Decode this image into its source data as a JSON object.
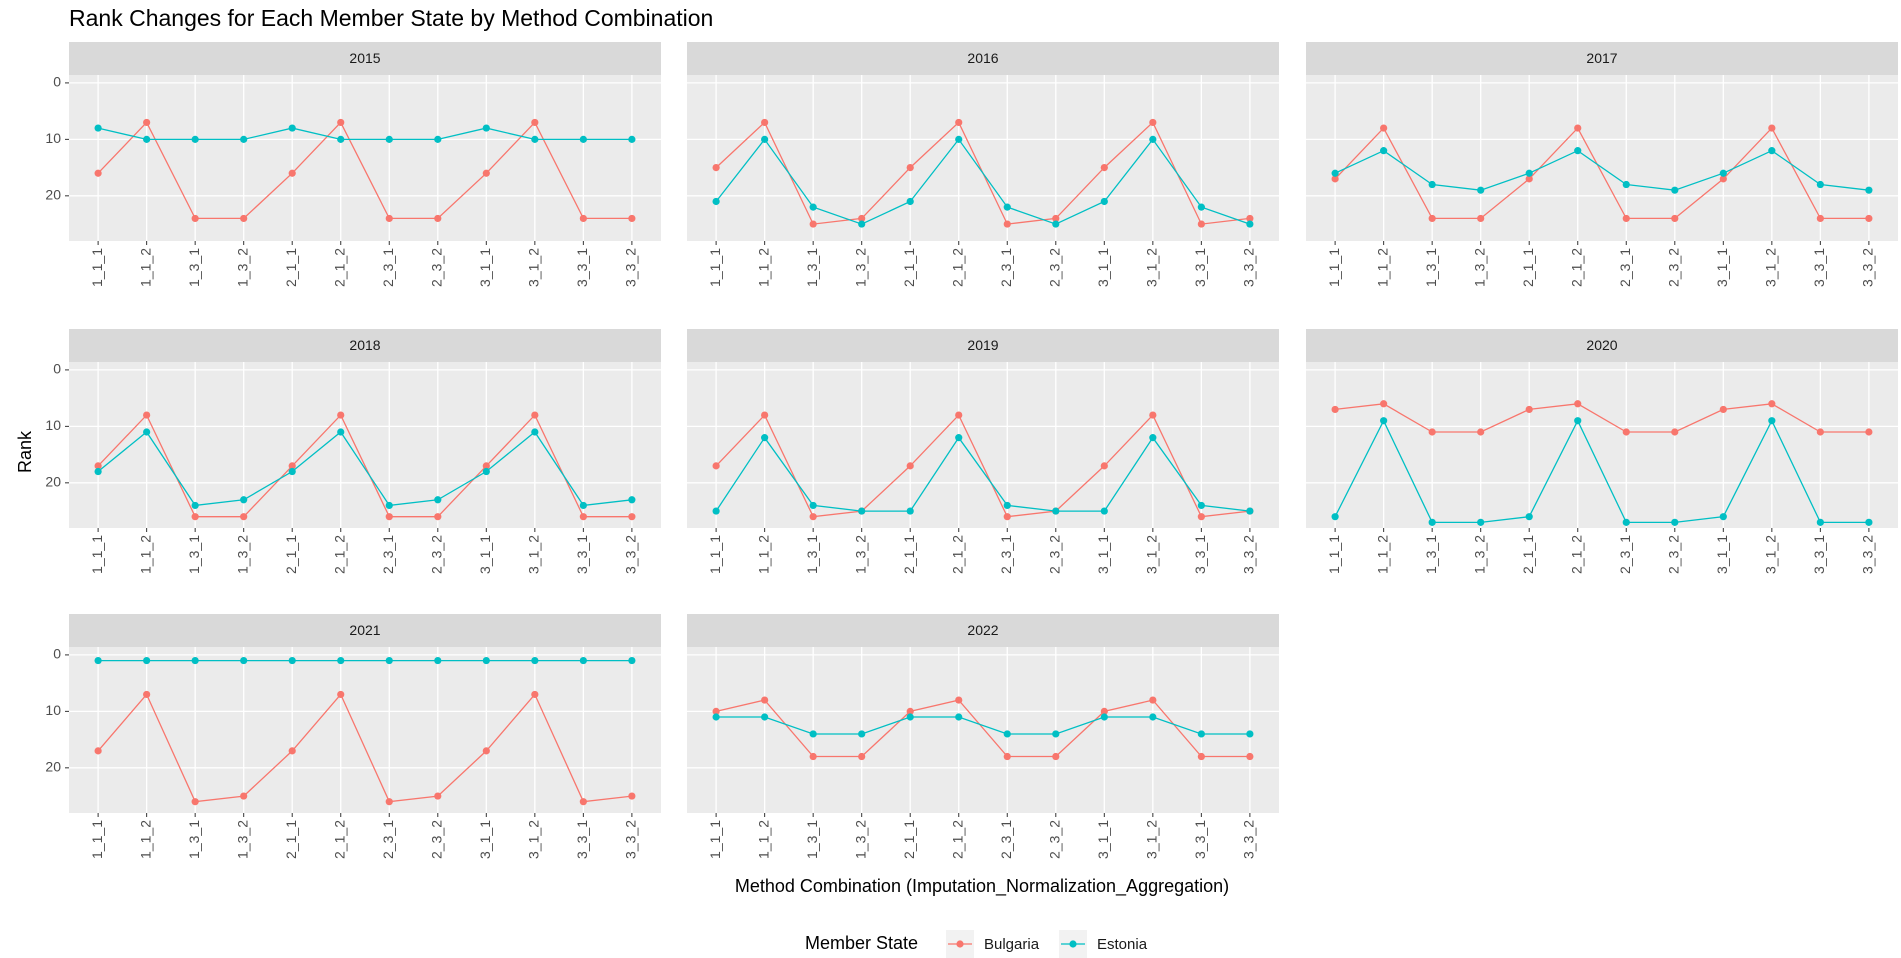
{
  "title": "Rank Changes for Each Member State by Method Combination",
  "x_label": "Method Combination (Imputation_Normalization_Aggregation)",
  "y_label": "Rank",
  "legend_title": "Member State",
  "chart_data": [
    {
      "type": "line",
      "title": "2015",
      "categories": [
        "1_1_1",
        "1_1_2",
        "1_3_1",
        "1_3_2",
        "2_1_1",
        "2_1_2",
        "2_3_1",
        "2_3_2",
        "3_1_1",
        "3_1_2",
        "3_3_1",
        "3_3_2"
      ],
      "ylim": [
        -1.4,
        28
      ],
      "y_reversed": true,
      "yticks": [
        0,
        10,
        20
      ],
      "grid": true,
      "series": [
        {
          "name": "Bulgaria",
          "color": "#F8766D",
          "values": [
            16,
            7,
            24,
            24,
            16,
            7,
            24,
            24,
            16,
            7,
            24,
            24
          ]
        },
        {
          "name": "Estonia",
          "color": "#00BFC4",
          "values": [
            8,
            10,
            10,
            10,
            8,
            10,
            10,
            10,
            8,
            10,
            10,
            10
          ]
        }
      ]
    },
    {
      "type": "line",
      "title": "2016",
      "categories": [
        "1_1_1",
        "1_1_2",
        "1_3_1",
        "1_3_2",
        "2_1_1",
        "2_1_2",
        "2_3_1",
        "2_3_2",
        "3_1_1",
        "3_1_2",
        "3_3_1",
        "3_3_2"
      ],
      "ylim": [
        -1.4,
        28
      ],
      "y_reversed": true,
      "yticks": [
        0,
        10,
        20
      ],
      "grid": true,
      "series": [
        {
          "name": "Bulgaria",
          "color": "#F8766D",
          "values": [
            15,
            7,
            25,
            24,
            15,
            7,
            25,
            24,
            15,
            7,
            25,
            24
          ]
        },
        {
          "name": "Estonia",
          "color": "#00BFC4",
          "values": [
            21,
            10,
            22,
            25,
            21,
            10,
            22,
            25,
            21,
            10,
            22,
            25
          ]
        }
      ]
    },
    {
      "type": "line",
      "title": "2017",
      "categories": [
        "1_1_1",
        "1_1_2",
        "1_3_1",
        "1_3_2",
        "2_1_1",
        "2_1_2",
        "2_3_1",
        "2_3_2",
        "3_1_1",
        "3_1_2",
        "3_3_1",
        "3_3_2"
      ],
      "ylim": [
        -1.4,
        28
      ],
      "y_reversed": true,
      "yticks": [
        0,
        10,
        20
      ],
      "grid": true,
      "series": [
        {
          "name": "Bulgaria",
          "color": "#F8766D",
          "values": [
            17,
            8,
            24,
            24,
            17,
            8,
            24,
            24,
            17,
            8,
            24,
            24
          ]
        },
        {
          "name": "Estonia",
          "color": "#00BFC4",
          "values": [
            16,
            12,
            18,
            19,
            16,
            12,
            18,
            19,
            16,
            12,
            18,
            19
          ]
        }
      ]
    },
    {
      "type": "line",
      "title": "2018",
      "categories": [
        "1_1_1",
        "1_1_2",
        "1_3_1",
        "1_3_2",
        "2_1_1",
        "2_1_2",
        "2_3_1",
        "2_3_2",
        "3_1_1",
        "3_1_2",
        "3_3_1",
        "3_3_2"
      ],
      "ylim": [
        -1.4,
        28
      ],
      "y_reversed": true,
      "yticks": [
        0,
        10,
        20
      ],
      "grid": true,
      "series": [
        {
          "name": "Bulgaria",
          "color": "#F8766D",
          "values": [
            17,
            8,
            26,
            26,
            17,
            8,
            26,
            26,
            17,
            8,
            26,
            26
          ]
        },
        {
          "name": "Estonia",
          "color": "#00BFC4",
          "values": [
            18,
            11,
            24,
            23,
            18,
            11,
            24,
            23,
            18,
            11,
            24,
            23
          ]
        }
      ]
    },
    {
      "type": "line",
      "title": "2019",
      "categories": [
        "1_1_1",
        "1_1_2",
        "1_3_1",
        "1_3_2",
        "2_1_1",
        "2_1_2",
        "2_3_1",
        "2_3_2",
        "3_1_1",
        "3_1_2",
        "3_3_1",
        "3_3_2"
      ],
      "ylim": [
        -1.4,
        28
      ],
      "y_reversed": true,
      "yticks": [
        0,
        10,
        20
      ],
      "grid": true,
      "series": [
        {
          "name": "Bulgaria",
          "color": "#F8766D",
          "values": [
            17,
            8,
            26,
            25,
            17,
            8,
            26,
            25,
            17,
            8,
            26,
            25
          ]
        },
        {
          "name": "Estonia",
          "color": "#00BFC4",
          "values": [
            25,
            12,
            24,
            25,
            25,
            12,
            24,
            25,
            25,
            12,
            24,
            25
          ]
        }
      ]
    },
    {
      "type": "line",
      "title": "2020",
      "categories": [
        "1_1_1",
        "1_1_2",
        "1_3_1",
        "1_3_2",
        "2_1_1",
        "2_1_2",
        "2_3_1",
        "2_3_2",
        "3_1_1",
        "3_1_2",
        "3_3_1",
        "3_3_2"
      ],
      "ylim": [
        -1.4,
        28
      ],
      "y_reversed": true,
      "yticks": [
        0,
        10,
        20
      ],
      "grid": true,
      "series": [
        {
          "name": "Bulgaria",
          "color": "#F8766D",
          "values": [
            7,
            6,
            11,
            11,
            7,
            6,
            11,
            11,
            7,
            6,
            11,
            11
          ]
        },
        {
          "name": "Estonia",
          "color": "#00BFC4",
          "values": [
            26,
            9,
            27,
            27,
            26,
            9,
            27,
            27,
            26,
            9,
            27,
            27
          ]
        }
      ]
    },
    {
      "type": "line",
      "title": "2021",
      "categories": [
        "1_1_1",
        "1_1_2",
        "1_3_1",
        "1_3_2",
        "2_1_1",
        "2_1_2",
        "2_3_1",
        "2_3_2",
        "3_1_1",
        "3_1_2",
        "3_3_1",
        "3_3_2"
      ],
      "ylim": [
        -1.4,
        28
      ],
      "y_reversed": true,
      "yticks": [
        0,
        10,
        20
      ],
      "grid": true,
      "series": [
        {
          "name": "Bulgaria",
          "color": "#F8766D",
          "values": [
            17,
            7,
            26,
            25,
            17,
            7,
            26,
            25,
            17,
            7,
            26,
            25
          ]
        },
        {
          "name": "Estonia",
          "color": "#00BFC4",
          "values": [
            1,
            1,
            1,
            1,
            1,
            1,
            1,
            1,
            1,
            1,
            1,
            1
          ]
        }
      ]
    },
    {
      "type": "line",
      "title": "2022",
      "categories": [
        "1_1_1",
        "1_1_2",
        "1_3_1",
        "1_3_2",
        "2_1_1",
        "2_1_2",
        "2_3_1",
        "2_3_2",
        "3_1_1",
        "3_1_2",
        "3_3_1",
        "3_3_2"
      ],
      "ylim": [
        -1.4,
        28
      ],
      "y_reversed": true,
      "yticks": [
        0,
        10,
        20
      ],
      "grid": true,
      "series": [
        {
          "name": "Bulgaria",
          "color": "#F8766D",
          "values": [
            10,
            8,
            18,
            18,
            10,
            8,
            18,
            18,
            10,
            8,
            18,
            18
          ]
        },
        {
          "name": "Estonia",
          "color": "#00BFC4",
          "values": [
            11,
            11,
            14,
            14,
            11,
            11,
            14,
            14,
            11,
            11,
            14,
            14
          ]
        }
      ]
    }
  ]
}
